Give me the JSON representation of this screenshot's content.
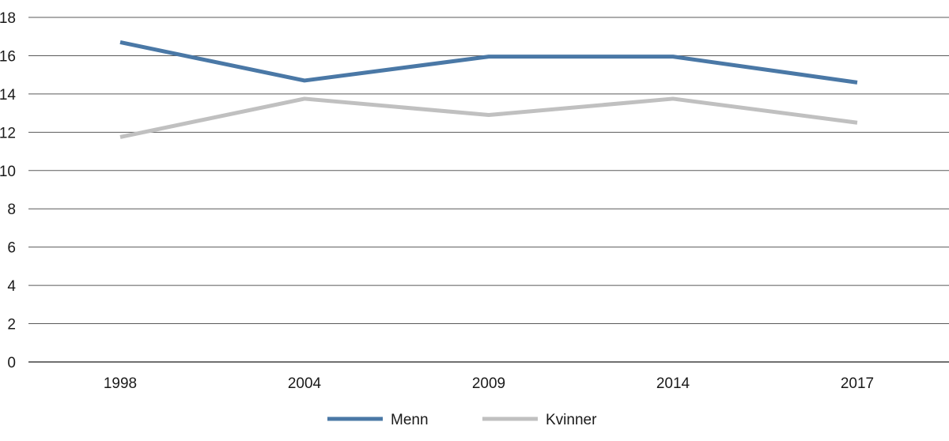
{
  "chart_data": {
    "type": "line",
    "title": "",
    "xlabel": "",
    "ylabel": "",
    "categories": [
      "1998",
      "2004",
      "2009",
      "2014",
      "2017"
    ],
    "ylim": [
      0,
      18
    ],
    "yticks": [
      0,
      2,
      4,
      6,
      8,
      10,
      12,
      14,
      16,
      18
    ],
    "grid": "horizontal",
    "legend_position": "bottom-center",
    "series": [
      {
        "name": "Menn",
        "values": [
          16.7,
          14.7,
          15.95,
          15.95,
          14.6
        ],
        "color": "#4a78a6"
      },
      {
        "name": "Kvinner",
        "values": [
          11.75,
          13.75,
          12.9,
          13.75,
          12.5
        ],
        "color": "#c0c0c0"
      }
    ]
  }
}
